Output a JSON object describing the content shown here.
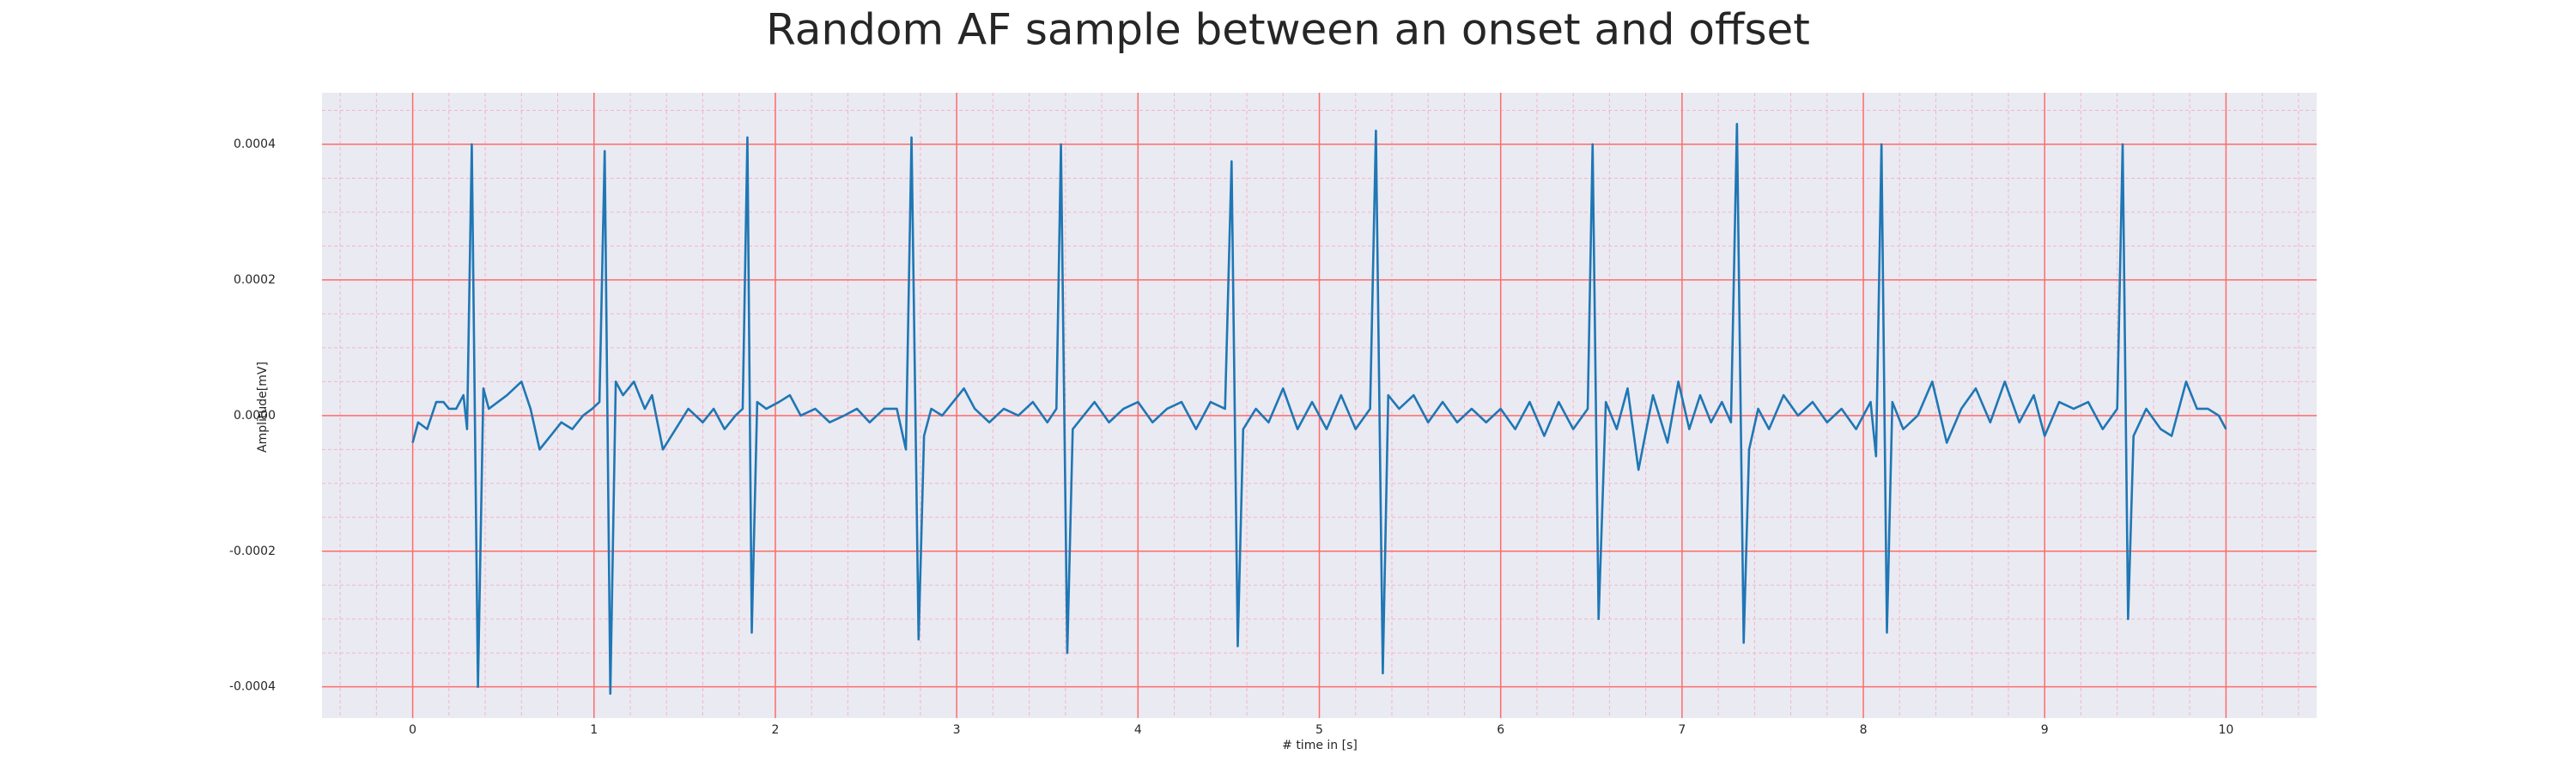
{
  "chart_data": {
    "type": "line",
    "title": "Random AF sample between an onset and offset",
    "xlabel": "# time in [s]",
    "ylabel": "Amplitude[mV]",
    "xlim": [
      -0.5,
      10.5
    ],
    "ylim": [
      -0.000446,
      0.000476
    ],
    "xticks": [
      0,
      1,
      2,
      3,
      4,
      5,
      6,
      7,
      8,
      9,
      10
    ],
    "yticks": [
      -0.0004,
      -0.0002,
      {
        "value": 0,
        "label": "0.0000"
      },
      0.0002,
      0.0004
    ],
    "grid": true,
    "minor_grid": true,
    "grid_color": "#ff6b6b",
    "minor_grid_color": "#f4b6c6",
    "background": "#eaeaf2",
    "series": [
      {
        "color": "#1f77b4",
        "x": [
          0.0,
          0.03,
          0.08,
          0.13,
          0.17,
          0.2,
          0.24,
          0.28,
          0.3,
          0.326,
          0.36,
          0.39,
          0.42,
          0.47,
          0.52,
          0.6,
          0.65,
          0.7,
          0.76,
          0.82,
          0.88,
          0.94,
          0.99,
          1.03,
          1.059,
          1.09,
          1.12,
          1.16,
          1.22,
          1.28,
          1.32,
          1.38,
          1.45,
          1.52,
          1.6,
          1.66,
          1.72,
          1.78,
          1.82,
          1.846,
          1.87,
          1.9,
          1.95,
          2.02,
          2.08,
          2.14,
          2.22,
          2.3,
          2.38,
          2.45,
          2.52,
          2.6,
          2.67,
          2.72,
          2.751,
          2.79,
          2.82,
          2.86,
          2.92,
          2.98,
          3.04,
          3.1,
          3.18,
          3.26,
          3.34,
          3.42,
          3.5,
          3.55,
          3.575,
          3.61,
          3.64,
          3.7,
          3.76,
          3.84,
          3.92,
          4.0,
          4.08,
          4.16,
          4.24,
          4.32,
          4.4,
          4.48,
          4.516,
          4.55,
          4.58,
          4.65,
          4.72,
          4.8,
          4.88,
          4.96,
          5.04,
          5.12,
          5.2,
          5.28,
          5.312,
          5.35,
          5.38,
          5.44,
          5.52,
          5.6,
          5.68,
          5.76,
          5.84,
          5.92,
          6.0,
          6.08,
          6.16,
          6.24,
          6.32,
          6.4,
          6.48,
          6.507,
          6.54,
          6.58,
          6.64,
          6.7,
          6.76,
          6.84,
          6.92,
          6.98,
          7.04,
          7.1,
          7.16,
          7.22,
          7.27,
          7.303,
          7.34,
          7.37,
          7.42,
          7.48,
          7.56,
          7.64,
          7.72,
          7.8,
          7.88,
          7.96,
          8.04,
          8.07,
          8.1,
          8.13,
          8.16,
          8.22,
          8.3,
          8.38,
          8.46,
          8.54,
          8.62,
          8.7,
          8.78,
          8.86,
          8.94,
          9.0,
          9.08,
          9.16,
          9.24,
          9.32,
          9.4,
          9.43,
          9.46,
          9.49,
          9.56,
          9.64,
          9.7,
          9.78,
          9.84,
          9.9,
          9.96,
          10.0
        ],
        "values": [
          -4e-05,
          -1e-05,
          -2e-05,
          2e-05,
          2e-05,
          1e-05,
          1e-05,
          3e-05,
          -2e-05,
          0.0004,
          -0.0004,
          4e-05,
          1e-05,
          2e-05,
          3e-05,
          5e-05,
          1e-05,
          -5e-05,
          -3e-05,
          -1e-05,
          -2e-05,
          0.0,
          1e-05,
          2e-05,
          0.00039,
          -0.00041,
          5e-05,
          3e-05,
          5e-05,
          1e-05,
          3e-05,
          -5e-05,
          -2e-05,
          1e-05,
          -1e-05,
          1e-05,
          -2e-05,
          0.0,
          1e-05,
          0.00041,
          -0.00032,
          2e-05,
          1e-05,
          2e-05,
          3e-05,
          0.0,
          1e-05,
          -1e-05,
          0.0,
          1e-05,
          -1e-05,
          1e-05,
          1e-05,
          -5e-05,
          0.00041,
          -0.00033,
          -3e-05,
          1e-05,
          0.0,
          2e-05,
          4e-05,
          1e-05,
          -1e-05,
          1e-05,
          0.0,
          2e-05,
          -1e-05,
          1e-05,
          0.0004,
          -0.00035,
          -2e-05,
          0.0,
          2e-05,
          -1e-05,
          1e-05,
          2e-05,
          -1e-05,
          1e-05,
          2e-05,
          -2e-05,
          2e-05,
          1e-05,
          0.000375,
          -0.00034,
          -2e-05,
          1e-05,
          -1e-05,
          4e-05,
          -2e-05,
          2e-05,
          -2e-05,
          3e-05,
          -2e-05,
          1e-05,
          0.00042,
          -0.00038,
          3e-05,
          1e-05,
          3e-05,
          -1e-05,
          2e-05,
          -1e-05,
          1e-05,
          -1e-05,
          1e-05,
          -2e-05,
          2e-05,
          -3e-05,
          2e-05,
          -2e-05,
          1e-05,
          0.0004,
          -0.0003,
          2e-05,
          -2e-05,
          4e-05,
          -8e-05,
          3e-05,
          -4e-05,
          5e-05,
          -2e-05,
          3e-05,
          -1e-05,
          2e-05,
          -1e-05,
          0.00043,
          -0.000335,
          -5e-05,
          1e-05,
          -2e-05,
          3e-05,
          0.0,
          2e-05,
          -1e-05,
          1e-05,
          -2e-05,
          2e-05,
          -6e-05,
          0.0004,
          -0.00032,
          2e-05,
          -2e-05,
          0.0,
          5e-05,
          -4e-05,
          1e-05,
          4e-05,
          -1e-05,
          5e-05,
          -1e-05,
          3e-05,
          -3e-05,
          2e-05,
          1e-05,
          2e-05,
          -2e-05,
          1e-05,
          0.0004,
          -0.0003,
          -3e-05,
          1e-05,
          -2e-05,
          -3e-05,
          5e-05,
          1e-05,
          1e-05,
          0.0,
          -2e-05
        ]
      }
    ]
  }
}
